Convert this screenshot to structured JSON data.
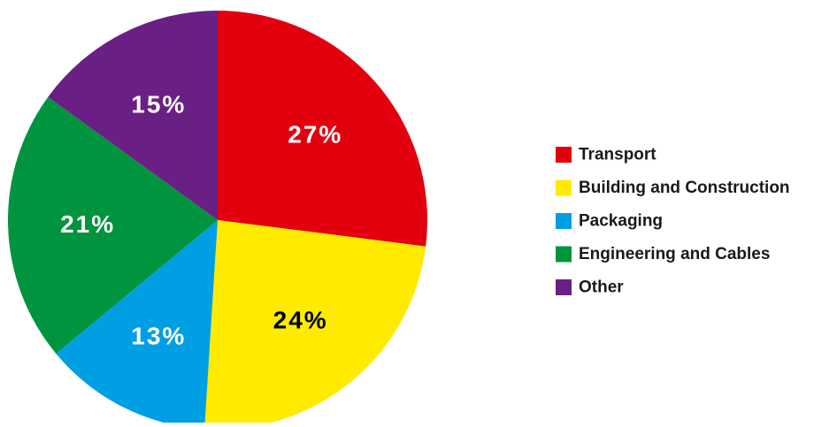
{
  "chart_data": {
    "type": "pie",
    "title": "",
    "start_angle_deg": 0,
    "direction": "clockwise",
    "legend_position": "right",
    "slices": [
      {
        "label": "Transport",
        "value": 27,
        "display": "27%",
        "color": "#E2000F",
        "label_color": "#ffffff"
      },
      {
        "label": "Building and Construction",
        "value": 24,
        "display": "24%",
        "color": "#FFEB00",
        "label_color": "#000000"
      },
      {
        "label": "Packaging",
        "value": 13,
        "display": "13%",
        "color": "#009FE3",
        "label_color": "#ffffff"
      },
      {
        "label": "Engineering and Cables",
        "value": 21,
        "display": "21%",
        "color": "#00943F",
        "label_color": "#ffffff"
      },
      {
        "label": "Other",
        "value": 15,
        "display": "15%",
        "color": "#6A1F84",
        "label_color": "#ffffff"
      }
    ]
  }
}
